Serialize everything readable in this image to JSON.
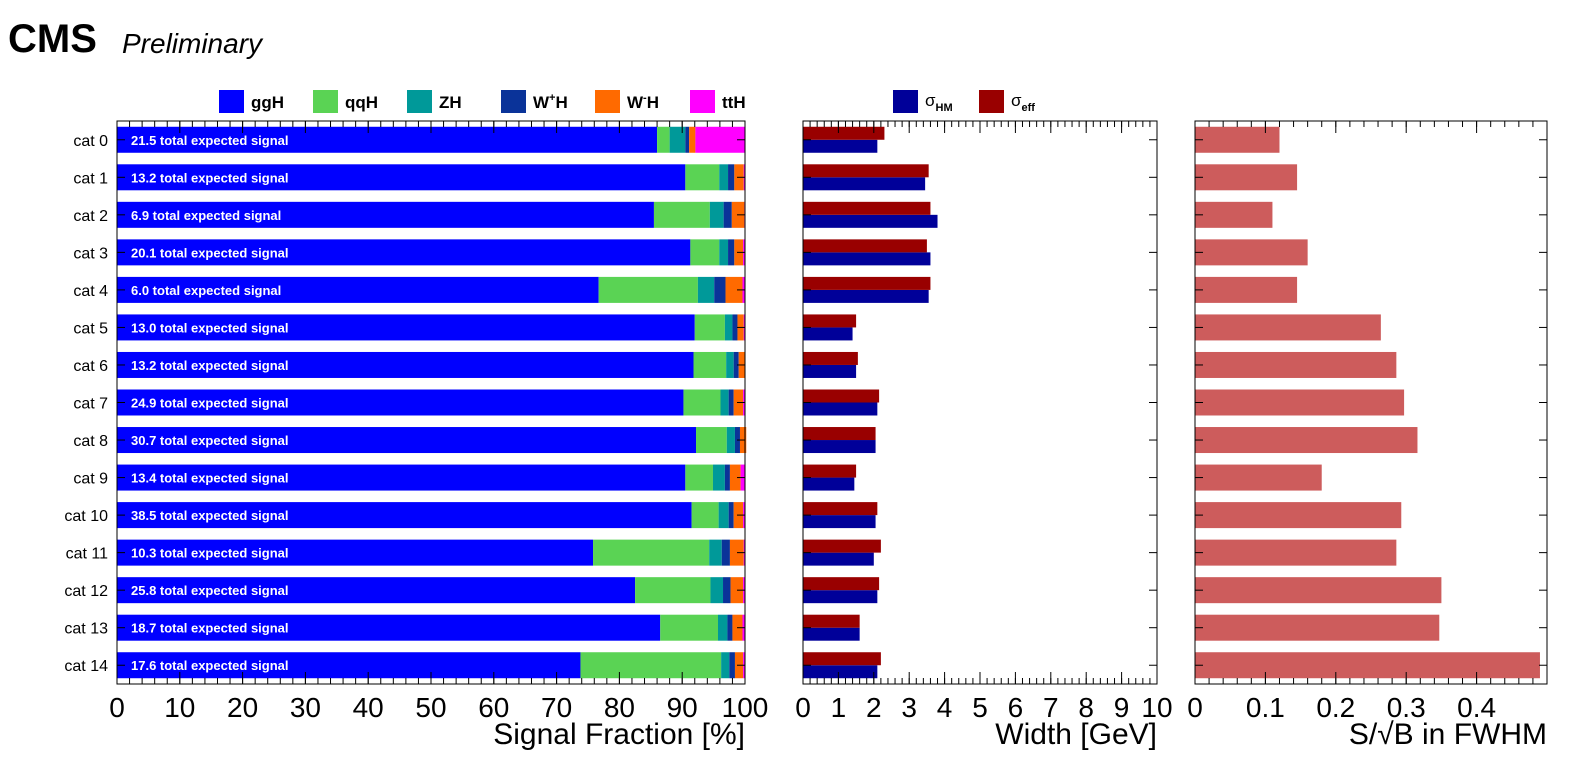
{
  "header": {
    "experiment": "CMS",
    "status": "Preliminary"
  },
  "chart_data": [
    {
      "type": "bar",
      "orientation": "horizontal",
      "stacked": true,
      "xlabel": "Signal Fraction [%]",
      "xlim": [
        0,
        100
      ],
      "xticks": [
        "0",
        "10",
        "20",
        "30",
        "40",
        "50",
        "60",
        "70",
        "80",
        "90",
        "100"
      ],
      "categories": [
        "cat 0",
        "cat 1",
        "cat 2",
        "cat 3",
        "cat 4",
        "cat 5",
        "cat 6",
        "cat 7",
        "cat 8",
        "cat 9",
        "cat 10",
        "cat 11",
        "cat 12",
        "cat 13",
        "cat 14"
      ],
      "bar_labels": [
        "21.5 total expected signal",
        "13.2 total expected signal",
        "6.9 total expected signal",
        "20.1 total expected signal",
        "6.0 total expected signal",
        "13.0 total expected signal",
        "13.2 total expected signal",
        "24.9 total expected signal",
        "30.7 total expected signal",
        "13.4 total expected signal",
        "38.5 total expected signal",
        "10.3 total expected signal",
        "25.8 total expected signal",
        "18.7 total expected signal",
        "17.6 total expected signal"
      ],
      "series": [
        {
          "name": "ggH",
          "label": "ggH",
          "color": "#0000ff",
          "values": [
            86.0,
            90.5,
            85.5,
            91.3,
            76.7,
            92.0,
            91.8,
            90.2,
            92.2,
            90.5,
            91.5,
            75.8,
            82.5,
            86.5,
            73.8
          ]
        },
        {
          "name": "qqH",
          "label": "qqH",
          "color": "#5ad354",
          "values": [
            2.0,
            5.4,
            8.9,
            4.6,
            15.8,
            4.8,
            5.2,
            5.9,
            4.9,
            4.4,
            4.3,
            18.5,
            12.0,
            9.2,
            22.4
          ]
        },
        {
          "name": "ZH",
          "label": "ZH",
          "color": "#009999",
          "values": [
            2.5,
            1.4,
            2.2,
            1.4,
            2.6,
            1.2,
            1.2,
            1.3,
            1.3,
            1.9,
            1.6,
            2.0,
            2.0,
            1.5,
            1.3
          ]
        },
        {
          "name": "W+H",
          "label": "W",
          "sup": "+",
          "suffix": "H",
          "color": "#0a3399",
          "values": [
            0.6,
            1.0,
            1.3,
            1.0,
            1.8,
            0.8,
            0.8,
            0.8,
            0.8,
            0.8,
            0.8,
            1.3,
            1.2,
            0.8,
            0.9
          ]
        },
        {
          "name": "W-H",
          "label": "W",
          "sup": "-",
          "suffix": "H",
          "color": "#ff6a00",
          "values": [
            1.0,
            1.5,
            2.0,
            1.4,
            2.7,
            1.0,
            1.0,
            1.5,
            1.0,
            1.7,
            1.5,
            2.2,
            2.0,
            1.6,
            1.3
          ]
        },
        {
          "name": "ttH",
          "label": "ttH",
          "color": "#ff00ff",
          "values": [
            7.9,
            0.2,
            0.1,
            0.3,
            0.4,
            0.2,
            0.0,
            0.3,
            0.0,
            0.7,
            0.3,
            0.2,
            0.3,
            0.4,
            0.3
          ]
        }
      ]
    },
    {
      "type": "bar",
      "orientation": "horizontal",
      "xlabel": "Width [GeV]",
      "xlim": [
        0,
        10
      ],
      "xticks": [
        "0",
        "1",
        "2",
        "3",
        "4",
        "5",
        "6",
        "7",
        "8",
        "9",
        "10"
      ],
      "categories": [
        "cat 0",
        "cat 1",
        "cat 2",
        "cat 3",
        "cat 4",
        "cat 5",
        "cat 6",
        "cat 7",
        "cat 8",
        "cat 9",
        "cat 10",
        "cat 11",
        "cat 12",
        "cat 13",
        "cat 14"
      ],
      "series": [
        {
          "name": "σHM",
          "label": "σ",
          "sub": "HM",
          "color": "#000099",
          "values": [
            2.1,
            3.45,
            3.8,
            3.6,
            3.55,
            1.4,
            1.5,
            2.1,
            2.05,
            1.45,
            2.05,
            2.0,
            2.1,
            1.6,
            2.1
          ]
        },
        {
          "name": "σeff",
          "label": "σ",
          "sub": "eff",
          "color": "#990000",
          "values": [
            2.3,
            3.55,
            3.6,
            3.5,
            3.6,
            1.5,
            1.55,
            2.15,
            2.05,
            1.5,
            2.1,
            2.2,
            2.15,
            1.6,
            2.2
          ]
        }
      ]
    },
    {
      "type": "bar",
      "orientation": "horizontal",
      "xlabel": "S/√B in FWHM",
      "xlim": [
        0,
        0.5
      ],
      "xticks": [
        "0",
        "0.1",
        "0.2",
        "0.3",
        "0.4"
      ],
      "color": "#cd5c5c",
      "categories": [
        "cat 0",
        "cat 1",
        "cat 2",
        "cat 3",
        "cat 4",
        "cat 5",
        "cat 6",
        "cat 7",
        "cat 8",
        "cat 9",
        "cat 10",
        "cat 11",
        "cat 12",
        "cat 13",
        "cat 14"
      ],
      "values": [
        0.12,
        0.145,
        0.11,
        0.16,
        0.145,
        0.264,
        0.286,
        0.297,
        0.316,
        0.18,
        0.293,
        0.286,
        0.35,
        0.347,
        0.49
      ]
    }
  ]
}
